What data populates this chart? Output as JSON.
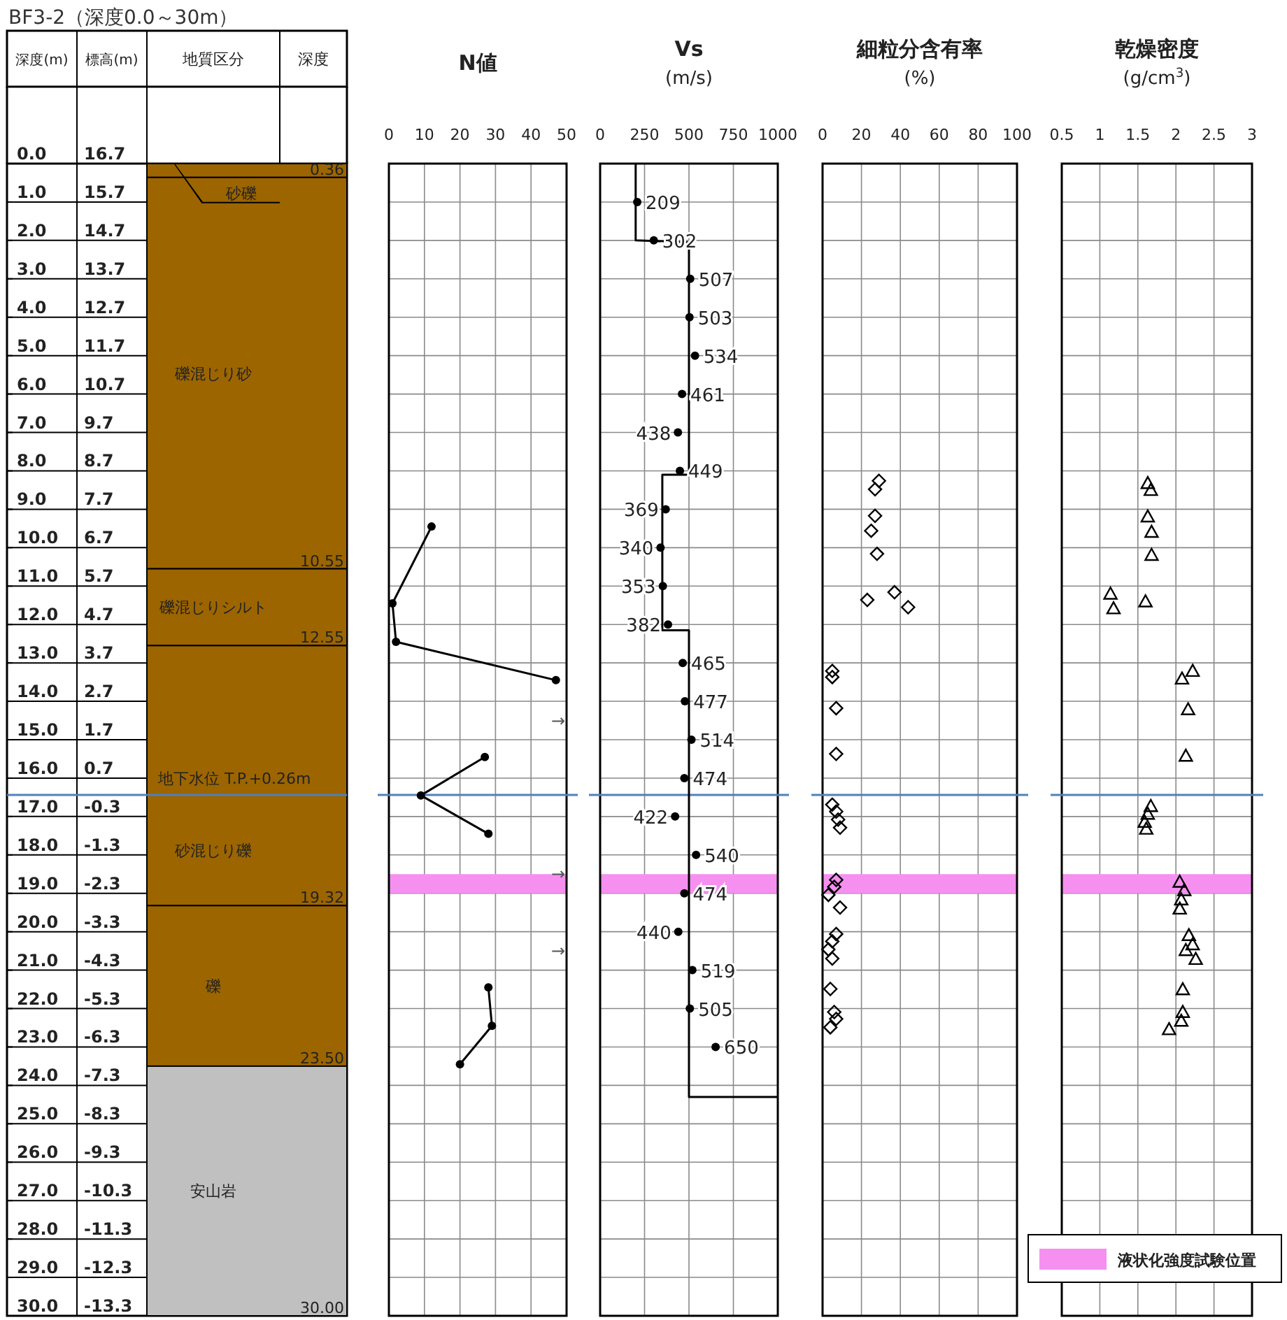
{
  "chart_data": [
    {
      "type": "bar",
      "stacked": true,
      "categories": [
        null
      ],
      "grid": "y",
      "title": "BF3-2（深度0.0～30m）",
      "ylabel": "深度(m)",
      "y2label": "標高(m)",
      "ylim": [
        30,
        0
      ],
      "yticks": [
        {
          "value": 0,
          "label": "0.0"
        },
        {
          "value": 1,
          "label": "1.0"
        },
        {
          "value": 2,
          "label": "2.0"
        },
        {
          "value": 3,
          "label": "3.0"
        },
        {
          "value": 4,
          "label": "4.0"
        },
        {
          "value": 5,
          "label": "5.0"
        },
        {
          "value": 6,
          "label": "6.0"
        },
        {
          "value": 7,
          "label": "7.0"
        },
        {
          "value": 8,
          "label": "8.0"
        },
        {
          "value": 9,
          "label": "9.0"
        },
        {
          "value": 10,
          "label": "10.0"
        },
        {
          "value": 11,
          "label": "11.0"
        },
        {
          "value": 12,
          "label": "12.0"
        },
        {
          "value": 13,
          "label": "13.0"
        },
        {
          "value": 14,
          "label": "14.0"
        },
        {
          "value": 15,
          "label": "15.0"
        },
        {
          "value": 16,
          "label": "16.0"
        },
        {
          "value": 17,
          "label": "17.0"
        },
        {
          "value": 18,
          "label": "18.0"
        },
        {
          "value": 19,
          "label": "19.0"
        },
        {
          "value": 20,
          "label": "20.0"
        },
        {
          "value": 21,
          "label": "21.0"
        },
        {
          "value": 22,
          "label": "22.0"
        },
        {
          "value": 23,
          "label": "23.0"
        },
        {
          "value": 24,
          "label": "24.0"
        },
        {
          "value": 25,
          "label": "25.0"
        },
        {
          "value": 26,
          "label": "26.0"
        },
        {
          "value": 27,
          "label": "27.0"
        },
        {
          "value": 28,
          "label": "28.0"
        },
        {
          "value": 29,
          "label": "29.0"
        },
        {
          "value": 30,
          "label": "30.0"
        }
      ],
      "y2lim": [
        -13.3,
        16.7
      ],
      "y2ticks": [
        16.7,
        15.7,
        14.7,
        13.7,
        12.7,
        11.7,
        10.7,
        9.7,
        8.7,
        7.7,
        6.7,
        5.7,
        4.7,
        3.7,
        2.7,
        1.7,
        0.7,
        -0.3,
        -1.3,
        -2.3,
        -3.3,
        -4.3,
        -5.3,
        -6.3,
        -7.3,
        -8.3,
        -9.3,
        -10.3,
        -11.3,
        -12.3,
        -13.3
      ],
      "series": [
        {
          "name": "砂礫",
          "color": "#9c6500",
          "values": [
            0.36
          ]
        },
        {
          "name": "礫混じり砂",
          "color": "#9c6500",
          "values": [
            10.19
          ]
        },
        {
          "name": "礫混じりシルト",
          "color": "#9c6500",
          "values": [
            2.0
          ]
        },
        {
          "name": "砂混じり礫",
          "color": "#9c6500",
          "values": [
            6.77
          ]
        },
        {
          "name": "礫",
          "color": "#9c6500",
          "values": [
            4.18
          ]
        },
        {
          "name": "安山岩",
          "color": "#c0c0c0",
          "values": [
            6.5
          ]
        }
      ],
      "ref_lines": [
        {
          "axis": "y",
          "value": 16.44,
          "label": "地下水位 T.P.+0.26m",
          "color": "#4f81bd"
        }
      ],
      "annotations": [
        "地質区分",
        "深度",
        {
          "text": "0.36",
          "y": 0.36
        },
        {
          "text": "10.55",
          "y": 10.55
        },
        {
          "text": "12.55",
          "y": 12.55
        },
        {
          "text": "19.32",
          "y": 19.32
        },
        {
          "text": "23.50",
          "y": 23.5
        },
        {
          "text": "30.00",
          "y": 30
        }
      ]
    },
    {
      "type": "line",
      "title": "N値",
      "orientation": "horizontal",
      "xlim": [
        0,
        50
      ],
      "xticks": [
        0,
        10,
        20,
        30,
        40,
        50
      ],
      "ylim": [
        30,
        0
      ],
      "tick_labels": "x",
      "grid": true,
      "marker": "circle",
      "yticks": [
        {
          "value": 0,
          "label": null
        },
        {
          "value": 1,
          "label": null
        },
        {
          "value": 2,
          "label": null
        },
        {
          "value": 3,
          "label": null
        },
        {
          "value": 4,
          "label": null
        },
        {
          "value": 5,
          "label": null
        },
        {
          "value": 6,
          "label": null
        },
        {
          "value": 7,
          "label": null
        },
        {
          "value": 8,
          "label": null
        },
        {
          "value": 9,
          "label": null
        },
        {
          "value": 10,
          "label": null
        },
        {
          "value": 11,
          "label": null
        },
        {
          "value": 12,
          "label": null
        },
        {
          "value": 13,
          "label": null
        },
        {
          "value": 14,
          "label": null
        },
        {
          "value": 15,
          "label": null
        },
        {
          "value": 16,
          "label": null
        },
        {
          "value": 17,
          "label": null
        },
        {
          "value": 18,
          "label": null
        },
        {
          "value": 19,
          "label": null
        },
        {
          "value": 20,
          "label": null
        },
        {
          "value": 21,
          "label": null
        },
        {
          "value": 22,
          "label": null
        },
        {
          "value": 23,
          "label": null
        },
        {
          "value": 24,
          "label": null
        },
        {
          "value": 25,
          "label": null
        },
        {
          "value": 26,
          "label": null
        },
        {
          "value": 27,
          "label": null
        },
        {
          "value": 28,
          "label": null
        },
        {
          "value": 29,
          "label": null
        },
        {
          "value": 30,
          "label": null
        }
      ],
      "series": [
        {
          "color": "#000000",
          "x": [
            9.45,
            11.45,
            12.45,
            13.45,
            14.5,
            15.45,
            16.45,
            17.45,
            18.5,
            20.5,
            21.45,
            22.45,
            23.45
          ],
          "values": [
            12,
            1,
            2,
            47,
            null,
            27,
            9,
            28,
            null,
            null,
            28,
            29,
            20
          ]
        }
      ],
      "annotations": [
        "→",
        "→",
        "→"
      ],
      "ref_lines": [
        {
          "axis": "y",
          "value": 16.44,
          "color": "#4f81bd"
        }
      ],
      "bands": [
        {
          "axis": "y",
          "from": 18.5,
          "to": 19.0,
          "color": "#f590f0"
        }
      ]
    },
    {
      "type": "scatter",
      "title": "Vs",
      "subtitle": "(m/s)",
      "orientation": "horizontal",
      "xlim": [
        0,
        1000
      ],
      "xticks": [
        0,
        250,
        500,
        750,
        1000
      ],
      "ylim": [
        30,
        0
      ],
      "tick_labels": "x",
      "grid": true,
      "yticks": [
        {
          "value": 0,
          "label": null
        },
        {
          "value": 1,
          "label": null
        },
        {
          "value": 2,
          "label": null
        },
        {
          "value": 3,
          "label": null
        },
        {
          "value": 4,
          "label": null
        },
        {
          "value": 5,
          "label": null
        },
        {
          "value": 6,
          "label": null
        },
        {
          "value": 7,
          "label": null
        },
        {
          "value": 8,
          "label": null
        },
        {
          "value": 9,
          "label": null
        },
        {
          "value": 10,
          "label": null
        },
        {
          "value": 11,
          "label": null
        },
        {
          "value": 12,
          "label": null
        },
        {
          "value": 13,
          "label": null
        },
        {
          "value": 14,
          "label": null
        },
        {
          "value": 15,
          "label": null
        },
        {
          "value": 16,
          "label": null
        },
        {
          "value": 17,
          "label": null
        },
        {
          "value": 18,
          "label": null
        },
        {
          "value": 19,
          "label": null
        },
        {
          "value": 20,
          "label": null
        },
        {
          "value": 21,
          "label": null
        },
        {
          "value": 22,
          "label": null
        },
        {
          "value": 23,
          "label": null
        },
        {
          "value": 24,
          "label": null
        },
        {
          "value": 25,
          "label": null
        },
        {
          "value": 26,
          "label": null
        },
        {
          "value": 27,
          "label": null
        },
        {
          "value": 28,
          "label": null
        },
        {
          "value": 29,
          "label": null
        },
        {
          "value": 30,
          "label": null
        }
      ],
      "series": [
        {
          "type": "scatter",
          "marker": "circle",
          "data_labels": true,
          "color": "#000000",
          "x": [
            1,
            2,
            3,
            4,
            5,
            6,
            7,
            8,
            9,
            10,
            11,
            12,
            13,
            14,
            15,
            16,
            17,
            18,
            19,
            20,
            21,
            22,
            23
          ],
          "values": [
            209,
            302,
            507,
            503,
            534,
            461,
            438,
            449,
            369,
            340,
            353,
            382,
            465,
            477,
            514,
            474,
            422,
            540,
            474,
            440,
            519,
            505,
            650
          ]
        },
        {
          "type": "line",
          "marker": "none",
          "color": "#000000",
          "x": [
            0,
            2.0,
            2.05,
            8.1,
            8.1,
            12.15,
            12.15,
            24.3,
            24.3
          ],
          "values": [
            200,
            200,
            500,
            500,
            350,
            350,
            500,
            500,
            1000
          ]
        }
      ],
      "ref_lines": [
        {
          "axis": "y",
          "value": 16.44,
          "color": "#4f81bd"
        }
      ],
      "bands": [
        {
          "axis": "y",
          "from": 18.5,
          "to": 19.0,
          "color": "#f590f0"
        }
      ]
    },
    {
      "type": "scatter",
      "title": "細粒分含有率",
      "subtitle": "(%)",
      "orientation": "horizontal",
      "xlim": [
        0,
        100
      ],
      "xticks": [
        0,
        20,
        40,
        60,
        80,
        100
      ],
      "ylim": [
        30,
        0
      ],
      "tick_labels": "x",
      "grid": true,
      "marker": "diamond",
      "yticks": [
        {
          "value": 0,
          "label": null
        },
        {
          "value": 1,
          "label": null
        },
        {
          "value": 2,
          "label": null
        },
        {
          "value": 3,
          "label": null
        },
        {
          "value": 4,
          "label": null
        },
        {
          "value": 5,
          "label": null
        },
        {
          "value": 6,
          "label": null
        },
        {
          "value": 7,
          "label": null
        },
        {
          "value": 8,
          "label": null
        },
        {
          "value": 9,
          "label": null
        },
        {
          "value": 10,
          "label": null
        },
        {
          "value": 11,
          "label": null
        },
        {
          "value": 12,
          "label": null
        },
        {
          "value": 13,
          "label": null
        },
        {
          "value": 14,
          "label": null
        },
        {
          "value": 15,
          "label": null
        },
        {
          "value": 16,
          "label": null
        },
        {
          "value": 17,
          "label": null
        },
        {
          "value": 18,
          "label": null
        },
        {
          "value": 19,
          "label": null
        },
        {
          "value": 20,
          "label": null
        },
        {
          "value": 21,
          "label": null
        },
        {
          "value": 22,
          "label": null
        },
        {
          "value": 23,
          "label": null
        },
        {
          "value": 24,
          "label": null
        },
        {
          "value": 25,
          "label": null
        },
        {
          "value": 26,
          "label": null
        },
        {
          "value": 27,
          "label": null
        },
        {
          "value": 28,
          "label": null
        },
        {
          "value": 29,
          "label": null
        },
        {
          "value": 30,
          "label": null
        }
      ],
      "series": [
        {
          "color": "#000000",
          "x": [
            8.26,
            8.48,
            9.17,
            9.56,
            10.16,
            11.36,
            11.16,
            11.55,
            13.21,
            13.37,
            14.18,
            15.37,
            16.69,
            16.87,
            17.08,
            17.29,
            18.65,
            18.83,
            19.04,
            19.37,
            20.06,
            20.25,
            20.46,
            20.7,
            21.49,
            22.09,
            22.27,
            22.49
          ],
          "values": [
            29,
            27,
            27,
            25,
            28,
            23,
            37,
            44,
            5,
            5,
            7,
            7,
            5,
            7,
            8,
            9,
            7,
            6,
            3,
            9,
            7,
            5,
            3,
            5,
            4,
            6,
            7,
            4
          ]
        }
      ],
      "ref_lines": [
        {
          "axis": "y",
          "value": 16.44,
          "color": "#4f81bd"
        }
      ],
      "bands": [
        {
          "axis": "y",
          "from": 18.5,
          "to": 19.0,
          "color": "#f590f0"
        }
      ]
    },
    {
      "type": "scatter",
      "title": "乾燥密度",
      "subtitle": "(g/cm$^{3}$)",
      "orientation": "horizontal",
      "xlim": [
        0.5,
        3
      ],
      "xticks": [
        0.5,
        1,
        1.5,
        2,
        2.5,
        3
      ],
      "ylim": [
        30,
        0
      ],
      "tick_labels": "x",
      "grid": true,
      "marker": "triangle",
      "legend": "bottom right",
      "yticks": [
        {
          "value": 0,
          "label": null
        },
        {
          "value": 1,
          "label": null
        },
        {
          "value": 2,
          "label": null
        },
        {
          "value": 3,
          "label": null
        },
        {
          "value": 4,
          "label": null
        },
        {
          "value": 5,
          "label": null
        },
        {
          "value": 6,
          "label": null
        },
        {
          "value": 7,
          "label": null
        },
        {
          "value": 8,
          "label": null
        },
        {
          "value": 9,
          "label": null
        },
        {
          "value": 10,
          "label": null
        },
        {
          "value": 11,
          "label": null
        },
        {
          "value": 12,
          "label": null
        },
        {
          "value": 13,
          "label": null
        },
        {
          "value": 14,
          "label": null
        },
        {
          "value": 15,
          "label": null
        },
        {
          "value": 16,
          "label": null
        },
        {
          "value": 17,
          "label": null
        },
        {
          "value": 18,
          "label": null
        },
        {
          "value": 19,
          "label": null
        },
        {
          "value": 20,
          "label": null
        },
        {
          "value": 21,
          "label": null
        },
        {
          "value": 22,
          "label": null
        },
        {
          "value": 23,
          "label": null
        },
        {
          "value": 24,
          "label": null
        },
        {
          "value": 25,
          "label": null
        },
        {
          "value": 26,
          "label": null
        },
        {
          "value": 27,
          "label": null
        },
        {
          "value": 28,
          "label": null
        },
        {
          "value": 29,
          "label": null
        },
        {
          "value": 30,
          "label": null
        }
      ],
      "series": [
        {
          "color": "#000000",
          "x": [
            8.32,
            8.5,
            9.19,
            9.59,
            10.19,
            11.2,
            11.58,
            11.4,
            13.21,
            13.41,
            14.21,
            15.42,
            16.73,
            16.93,
            17.14,
            17.32,
            18.7,
            18.92,
            19.16,
            19.4,
            20.09,
            20.33,
            20.48,
            20.71,
            21.5,
            22.09,
            22.32,
            22.54
          ],
          "values": [
            1.63,
            1.67,
            1.63,
            1.68,
            1.68,
            1.14,
            1.18,
            1.6,
            2.22,
            2.08,
            2.16,
            2.13,
            1.67,
            1.63,
            1.59,
            1.61,
            2.05,
            2.11,
            2.07,
            2.05,
            2.17,
            2.22,
            2.13,
            2.26,
            2.09,
            2.09,
            2.07,
            1.91
          ]
        }
      ],
      "ref_lines": [
        {
          "axis": "y",
          "value": 16.44,
          "color": "#4f81bd"
        }
      ],
      "bands": [
        {
          "axis": "y",
          "from": 18.5,
          "to": 19.0,
          "color": "#f590f0",
          "label": "液状化強度試験位置"
        }
      ]
    }
  ]
}
